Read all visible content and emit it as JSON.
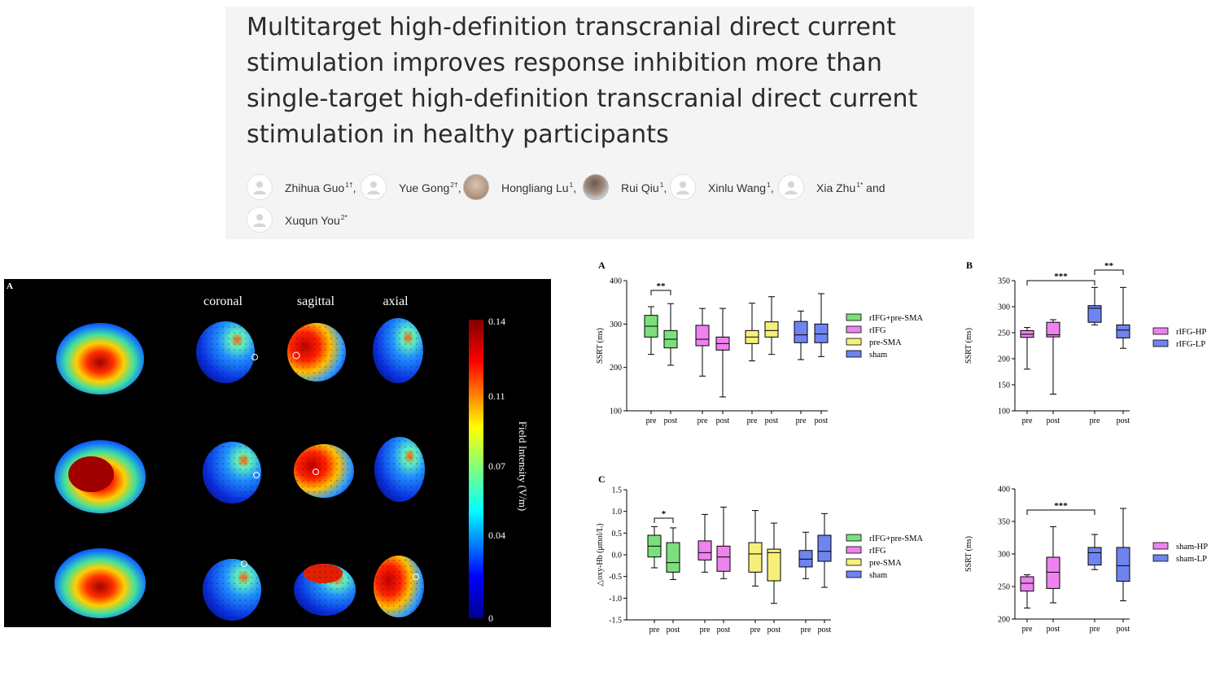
{
  "article": {
    "title": "Multitarget high-definition transcranial direct current stimulation improves response inhibition more than single-target high-definition transcranial direct current stimulation in healthy participants",
    "authors": [
      {
        "name": "Zhihua Guo",
        "sup": "1†",
        "sep": ","
      },
      {
        "name": "Yue Gong",
        "sup": "2†",
        "sep": ","
      },
      {
        "name": "Hongliang Lu",
        "sup": "1",
        "sep": ","
      },
      {
        "name": "Rui Qiu",
        "sup": "1",
        "sep": ","
      },
      {
        "name": "Xinlu Wang",
        "sup": "1",
        "sep": ","
      },
      {
        "name": "Xia Zhu",
        "sup": "1*",
        "sep": " and"
      },
      {
        "name": "Xuqun You",
        "sup": "2*",
        "sep": ""
      }
    ]
  },
  "figure_left": {
    "panel_letter": "A",
    "columns": [
      "coronal",
      "sagittal",
      "axial"
    ],
    "colorbar_label": "Field Intensity (V/m)",
    "colorbar_ticks": [
      "0.14",
      "0.11",
      "0.07",
      "0.04",
      "0"
    ],
    "colors": {
      "background": "#000000",
      "low": "#00008f",
      "high": "#b00000"
    }
  },
  "chart_data": [
    {
      "type": "box",
      "panel": "A",
      "ylabel": "SSRT (ms)",
      "ylim": [
        100,
        400
      ],
      "yticks": [
        100,
        200,
        300,
        400
      ],
      "xticks": [
        "pre",
        "post",
        "pre",
        "post",
        "pre",
        "post",
        "pre",
        "post"
      ],
      "series": [
        {
          "name": "rIFG+pre-SMA",
          "color": "#7be07b",
          "boxes": [
            {
              "min": 230,
              "q1": 270,
              "median": 295,
              "q3": 320,
              "max": 340
            },
            {
              "min": 205,
              "q1": 245,
              "median": 265,
              "q3": 285,
              "max": 347
            }
          ]
        },
        {
          "name": "rIFG",
          "color": "#ee82ee",
          "boxes": [
            {
              "min": 180,
              "q1": 250,
              "median": 265,
              "q3": 297,
              "max": 336
            },
            {
              "min": 132,
              "q1": 240,
              "median": 255,
              "q3": 270,
              "max": 336
            }
          ]
        },
        {
          "name": "pre-SMA",
          "color": "#f5f07a",
          "boxes": [
            {
              "min": 215,
              "q1": 255,
              "median": 270,
              "q3": 285,
              "max": 348
            },
            {
              "min": 230,
              "q1": 270,
              "median": 285,
              "q3": 305,
              "max": 363
            }
          ]
        },
        {
          "name": "sham",
          "color": "#6f84f0",
          "boxes": [
            {
              "min": 218,
              "q1": 257,
              "median": 275,
              "q3": 306,
              "max": 330
            },
            {
              "min": 225,
              "q1": 257,
              "median": 277,
              "q3": 300,
              "max": 370
            }
          ]
        }
      ],
      "annotations": [
        {
          "text": "**",
          "between": [
            "pre",
            "post"
          ],
          "group": 1
        }
      ]
    },
    {
      "type": "box",
      "panel": "B",
      "ylabel": "SSRT (ms)",
      "ylim": [
        100,
        350
      ],
      "yticks": [
        100,
        150,
        200,
        250,
        300,
        350
      ],
      "xticks": [
        "pre",
        "post",
        "pre",
        "post"
      ],
      "series": [
        {
          "name": "rIFG-HP",
          "color": "#ee82ee",
          "boxes": [
            {
              "min": 180,
              "q1": 241,
              "median": 247,
              "q3": 254,
              "max": 260
            },
            {
              "min": 132,
              "q1": 242,
              "median": 246,
              "q3": 270,
              "max": 275
            }
          ]
        },
        {
          "name": "rIFG-LP",
          "color": "#6f84f0",
          "boxes": [
            {
              "min": 265,
              "q1": 270,
              "median": 297,
              "q3": 302,
              "max": 337
            },
            {
              "min": 220,
              "q1": 240,
              "median": 255,
              "q3": 265,
              "max": 337
            }
          ]
        }
      ],
      "annotations": [
        {
          "text": "***",
          "between": [
            "pre HP",
            "pre LP"
          ]
        },
        {
          "text": "**",
          "between": [
            "pre LP",
            "post LP"
          ]
        }
      ]
    },
    {
      "type": "box",
      "panel": "C",
      "ylabel": "△oxy-Hb (μmol/L)",
      "ylim": [
        -1.5,
        1.5
      ],
      "yticks": [
        -1.5,
        -1.0,
        -0.5,
        0.0,
        0.5,
        1.0,
        1.5
      ],
      "xticks": [
        "pre",
        "post",
        "pre",
        "post",
        "pre",
        "post",
        "pre",
        "post"
      ],
      "series": [
        {
          "name": "rIFG+pre-SMA",
          "color": "#7be07b",
          "boxes": [
            {
              "min": -0.3,
              "q1": -0.05,
              "median": 0.2,
              "q3": 0.45,
              "max": 0.65
            },
            {
              "min": -0.57,
              "q1": -0.4,
              "median": -0.18,
              "q3": 0.28,
              "max": 0.62
            }
          ]
        },
        {
          "name": "rIFG",
          "color": "#ee82ee",
          "boxes": [
            {
              "min": -0.4,
              "q1": -0.12,
              "median": 0.05,
              "q3": 0.32,
              "max": 0.93
            },
            {
              "min": -0.55,
              "q1": -0.38,
              "median": -0.05,
              "q3": 0.2,
              "max": 1.1
            }
          ]
        },
        {
          "name": "pre-SMA",
          "color": "#f5f07a",
          "boxes": [
            {
              "min": -0.72,
              "q1": -0.4,
              "median": 0.02,
              "q3": 0.28,
              "max": 1.02
            },
            {
              "min": -1.12,
              "q1": -0.6,
              "median": 0.05,
              "q3": 0.13,
              "max": 0.73
            }
          ]
        },
        {
          "name": "sham",
          "color": "#6f84f0",
          "boxes": [
            {
              "min": -0.55,
              "q1": -0.28,
              "median": -0.1,
              "q3": 0.1,
              "max": 0.52
            },
            {
              "min": -0.75,
              "q1": -0.15,
              "median": 0.08,
              "q3": 0.45,
              "max": 0.95
            }
          ]
        }
      ],
      "annotations": [
        {
          "text": "*",
          "between": [
            "pre",
            "post"
          ],
          "group": 1
        }
      ]
    },
    {
      "type": "box",
      "panel": "",
      "ylabel": "SSRT (ms)",
      "ylim": [
        200,
        400
      ],
      "yticks": [
        200,
        250,
        300,
        350,
        400
      ],
      "xticks": [
        "pre",
        "post",
        "pre",
        "post"
      ],
      "series": [
        {
          "name": "sham-HP",
          "color": "#ee82ee",
          "boxes": [
            {
              "min": 217,
              "q1": 243,
              "median": 255,
              "q3": 265,
              "max": 268
            },
            {
              "min": 225,
              "q1": 247,
              "median": 272,
              "q3": 295,
              "max": 342
            }
          ]
        },
        {
          "name": "sham-LP",
          "color": "#6f84f0",
          "boxes": [
            {
              "min": 276,
              "q1": 283,
              "median": 302,
              "q3": 310,
              "max": 330
            },
            {
              "min": 228,
              "q1": 258,
              "median": 282,
              "q3": 310,
              "max": 370
            }
          ]
        }
      ],
      "annotations": [
        {
          "text": "***",
          "between": [
            "pre HP",
            "pre LP"
          ]
        }
      ]
    }
  ]
}
